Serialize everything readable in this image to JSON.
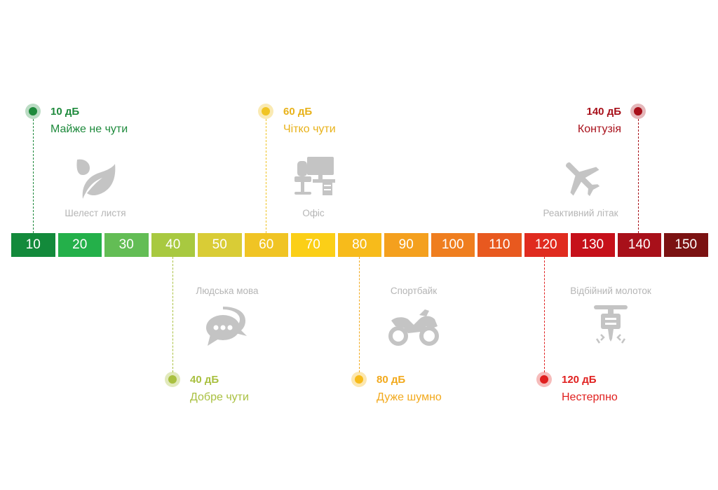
{
  "scale": {
    "segments": [
      {
        "label": "10",
        "color": "#138a3b"
      },
      {
        "label": "20",
        "color": "#24b04a"
      },
      {
        "label": "30",
        "color": "#63bd55"
      },
      {
        "label": "40",
        "color": "#a8c940"
      },
      {
        "label": "50",
        "color": "#d9cc36"
      },
      {
        "label": "60",
        "color": "#f0c424"
      },
      {
        "label": "70",
        "color": "#fbcf17"
      },
      {
        "label": "80",
        "color": "#f7bb1b"
      },
      {
        "label": "90",
        "color": "#f4a01e"
      },
      {
        "label": "100",
        "color": "#ef7e1f"
      },
      {
        "label": "110",
        "color": "#e8591f"
      },
      {
        "label": "120",
        "color": "#e02b1f"
      },
      {
        "label": "130",
        "color": "#c6101a"
      },
      {
        "label": "140",
        "color": "#a8101a"
      },
      {
        "label": "150",
        "color": "#7b1212"
      }
    ]
  },
  "markers": [
    {
      "db": "10 дБ",
      "desc": "Майже не чути",
      "color": "#1e8a3c"
    },
    {
      "db": "60 дБ",
      "desc": "Чітко чути",
      "color": "#e8b21a"
    },
    {
      "db": "140 дБ",
      "desc": "Контузія",
      "color": "#a8101a"
    },
    {
      "db": "40 дБ",
      "desc": "Добре чути",
      "color": "#a9c040"
    },
    {
      "db": "80 дБ",
      "desc": "Дуже шумно",
      "color": "#f2a91c"
    },
    {
      "db": "120 дБ",
      "desc": "Нестерпно",
      "color": "#e0201f"
    }
  ],
  "sources": [
    {
      "label": "Шелест листя",
      "icon": "leaf-icon"
    },
    {
      "label": "Офіс",
      "icon": "office-icon"
    },
    {
      "label": "Реактивний літак",
      "icon": "airplane-icon"
    },
    {
      "label": "Людська мова",
      "icon": "speech-bubbles-icon"
    },
    {
      "label": "Спортбайк",
      "icon": "motorcycle-icon"
    },
    {
      "label": "Відбійний молоток",
      "icon": "jackhammer-icon"
    }
  ]
}
